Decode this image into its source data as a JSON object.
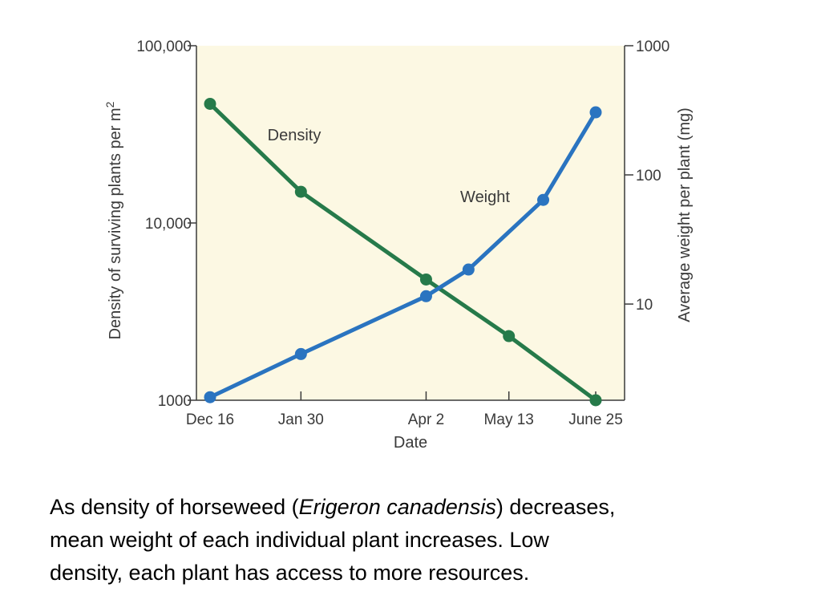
{
  "chart_data": {
    "type": "line",
    "x_label": "Date",
    "y_left_label": "Density of surviving plants per m",
    "y_left_label_sup": "2",
    "y_right_label": "Average weight per plant (mg)",
    "x_ticks": [
      "Dec 16",
      "Jan 30",
      "Apr 2",
      "May 13",
      "June 25"
    ],
    "y_left_ticks": [
      "100,000",
      "10,000",
      "1000"
    ],
    "y_right_ticks": [
      "1000",
      "100",
      "10"
    ],
    "y_left_scale": "log",
    "y_right_scale": "log",
    "y_left_range": [
      1000,
      100000
    ],
    "y_right_range": [
      1.8,
      1000
    ],
    "x_range": [
      "Dec 16",
      "June 25"
    ],
    "series": [
      {
        "name": "Density",
        "axis": "left",
        "color": "#267a4a",
        "points": [
          {
            "x": "Dec 16",
            "y": 47000
          },
          {
            "x": "Jan 30",
            "y": 15000
          },
          {
            "x": "Apr 2",
            "y": 4800
          },
          {
            "x": "May 13",
            "y": 2300
          },
          {
            "x": "June 25",
            "y": 1000
          }
        ]
      },
      {
        "name": "Weight",
        "axis": "right",
        "color": "#2a74c0",
        "points": [
          {
            "x": "Dec 16",
            "y": 1.9
          },
          {
            "x": "Jan 30",
            "y": 4.1
          },
          {
            "x": "Apr 2",
            "y": 11.5
          },
          {
            "x": "Apr 23",
            "y": 18.5
          },
          {
            "x": "May 30",
            "y": 64
          },
          {
            "x": "June 25",
            "y": 305
          }
        ]
      }
    ],
    "plot_background": "#fcf8e3",
    "grid": false
  },
  "caption": {
    "line1_before": "As density of horseweed (",
    "line1_italic": "Erigeron canadensis",
    "line1_after": ") decreases,",
    "line2": "mean weight of each individual plant increases.  Low",
    "line3": "density, each plant has access to more resources."
  }
}
